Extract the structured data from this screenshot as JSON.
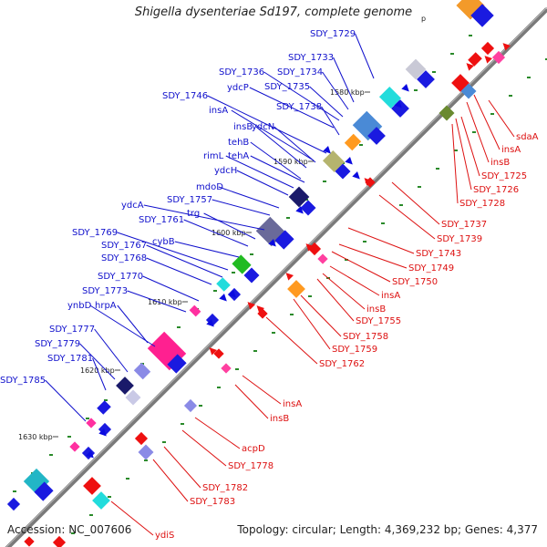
{
  "title": "Shigella dysenteriae Sd197, complete genome",
  "footer": {
    "accession": "Accession: NC_007606",
    "summary": "Topology: circular; Length: 4,369,232 bp; Genes: 4,377"
  },
  "colors": {
    "forward_label": "#1010cc",
    "reverse_label": "#dd1010",
    "backbone": "#7a7a7a",
    "forward_gene": "#0a0ae0",
    "reverse_gene": "#ee1010",
    "dot": "#2a8a2a"
  },
  "ticks": [
    {
      "text": "1580 kbp"
    },
    {
      "text": "1590 kbp"
    },
    {
      "text": "1600 kbp"
    },
    {
      "text": "1610 kbp"
    },
    {
      "text": "1620 kbp"
    },
    {
      "text": "1630 kbp"
    }
  ],
  "forward_labels": [
    {
      "text": "SDY_1729"
    },
    {
      "text": "SDY_1733"
    },
    {
      "text": "SDY_1736"
    },
    {
      "text": "SDY_1734"
    },
    {
      "text": "ydcP"
    },
    {
      "text": "SDY_1735"
    },
    {
      "text": "SDY_1746"
    },
    {
      "text": "SDY_1738"
    },
    {
      "text": "insA"
    },
    {
      "text": "insB"
    },
    {
      "text": "ydcN"
    },
    {
      "text": "tehB"
    },
    {
      "text": "rimL"
    },
    {
      "text": "tehA"
    },
    {
      "text": "ydcH"
    },
    {
      "text": "mdoD"
    },
    {
      "text": "SDY_1757"
    },
    {
      "text": "ydcA"
    },
    {
      "text": "trg"
    },
    {
      "text": "SDY_1761"
    },
    {
      "text": "SDY_1769"
    },
    {
      "text": "cybB"
    },
    {
      "text": "SDY_1767"
    },
    {
      "text": "SDY_1768"
    },
    {
      "text": "SDY_1770"
    },
    {
      "text": "SDY_1773"
    },
    {
      "text": "ynbD"
    },
    {
      "text": "hrpA"
    },
    {
      "text": "SDY_1777"
    },
    {
      "text": "SDY_1779"
    },
    {
      "text": "SDY_1781"
    },
    {
      "text": "SDY_1785"
    }
  ],
  "reverse_labels": [
    {
      "text": "sdaA"
    },
    {
      "text": "insA"
    },
    {
      "text": "insB"
    },
    {
      "text": "SDY_1725"
    },
    {
      "text": "SDY_1726"
    },
    {
      "text": "SDY_1728"
    },
    {
      "text": "SDY_1737"
    },
    {
      "text": "SDY_1739"
    },
    {
      "text": "SDY_1743"
    },
    {
      "text": "SDY_1749"
    },
    {
      "text": "SDY_1750"
    },
    {
      "text": "insA"
    },
    {
      "text": "insB"
    },
    {
      "text": "SDY_1755"
    },
    {
      "text": "SDY_1758"
    },
    {
      "text": "SDY_1759"
    },
    {
      "text": "SDY_1762"
    },
    {
      "text": "insA"
    },
    {
      "text": "insB"
    },
    {
      "text": "acpD"
    },
    {
      "text": "SDY_1778"
    },
    {
      "text": "SDY_1782"
    },
    {
      "text": "SDY_1783"
    },
    {
      "text": "ydiS"
    }
  ],
  "top_fragment": "p"
}
